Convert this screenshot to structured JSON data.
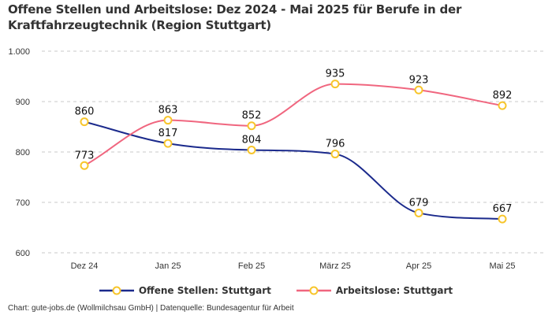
{
  "chart_data": {
    "type": "line",
    "title": "Offene Stellen und Arbeitslose: Dez 2024 - Mai 2025 für Berufe in der Kraftfahrzeugtechnik (Region Stuttgart)",
    "categories": [
      "Dez 24",
      "Jan 25",
      "Feb 25",
      "März 25",
      "Apr 25",
      "Mai 25"
    ],
    "series": [
      {
        "name": "Offene Stellen: Stuttgart",
        "color": "#1b2a8c",
        "values": [
          860,
          817,
          804,
          796,
          679,
          667
        ]
      },
      {
        "name": "Arbeitslose: Stuttgart",
        "color": "#f0667f",
        "values": [
          773,
          863,
          852,
          935,
          923,
          892
        ]
      }
    ],
    "marker_color": "#f7c52b",
    "ylim": [
      600,
      1000
    ],
    "yticks": [
      600,
      700,
      800,
      900,
      1000
    ],
    "ytick_labels": [
      "600",
      "700",
      "800",
      "900",
      "1.000"
    ],
    "xlabel": "",
    "ylabel": "",
    "grid": true,
    "legend_position": "bottom",
    "data_labels": true
  },
  "credits": "Chart: gute-jobs.de (Wollmilchsau GmbH) | Datenquelle: Bundesagentur für Arbeit"
}
